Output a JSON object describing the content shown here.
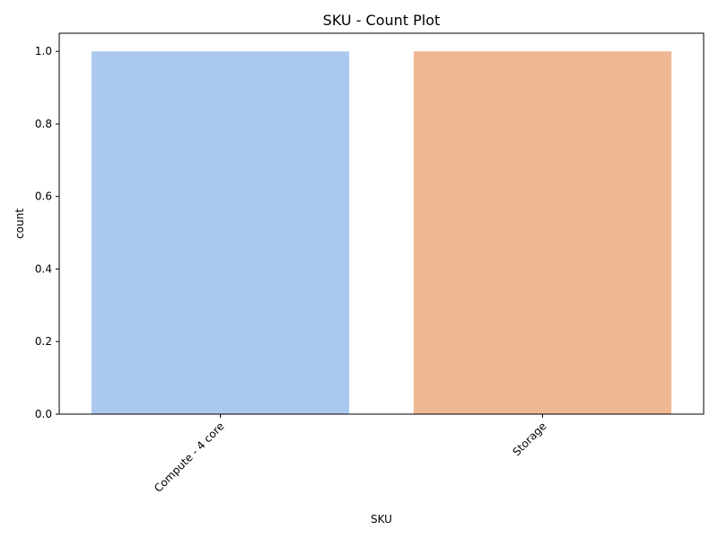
{
  "chart_data": {
    "type": "bar",
    "title": "SKU - Count Plot",
    "xlabel": "SKU",
    "ylabel": "count",
    "categories": [
      "Compute - 4 core",
      "Storage"
    ],
    "values": [
      1,
      1
    ],
    "colors": [
      "#abc9ee",
      "#f0b892"
    ],
    "ylim": [
      0,
      1.05
    ],
    "yticks": [
      "0.0",
      "0.2",
      "0.4",
      "0.6",
      "0.8",
      "1.0"
    ],
    "ytick_values": [
      0,
      0.2,
      0.4,
      0.6,
      0.8,
      1.0
    ],
    "xtick_rotation_deg": 45,
    "grid": false,
    "legend": "none"
  }
}
